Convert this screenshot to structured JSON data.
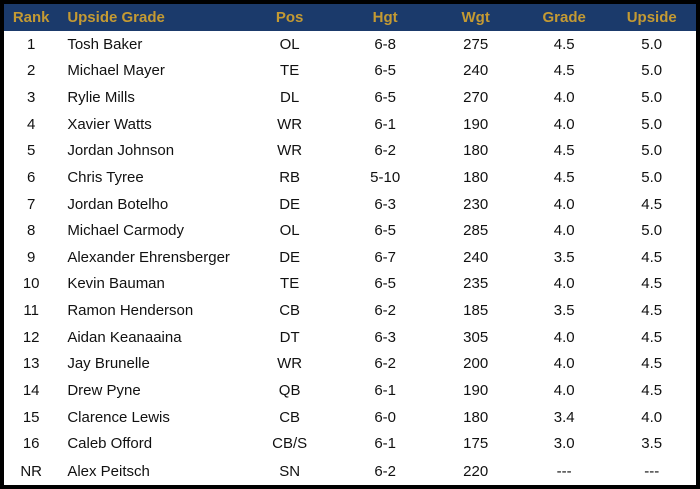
{
  "colors": {
    "header_bg": "#1B3A6B",
    "header_text": "#C49A33",
    "row_bg": "#FFFFFF",
    "row_text": "#111111",
    "outer_border": "#000000"
  },
  "chart_data": {
    "type": "table",
    "title": "",
    "columns": [
      "Rank",
      "Upside Grade",
      "Pos",
      "Hgt",
      "Wgt",
      "Grade",
      "Upside"
    ],
    "rows": [
      {
        "rank": "1",
        "name": "Tosh Baker",
        "pos": "OL",
        "hgt": "6-8",
        "wgt": "275",
        "grade": "4.5",
        "upside": "5.0"
      },
      {
        "rank": "2",
        "name": "Michael Mayer",
        "pos": "TE",
        "hgt": "6-5",
        "wgt": "240",
        "grade": "4.5",
        "upside": "5.0"
      },
      {
        "rank": "3",
        "name": "Rylie Mills",
        "pos": "DL",
        "hgt": "6-5",
        "wgt": "270",
        "grade": "4.0",
        "upside": "5.0"
      },
      {
        "rank": "4",
        "name": "Xavier Watts",
        "pos": "WR",
        "hgt": "6-1",
        "wgt": "190",
        "grade": "4.0",
        "upside": "5.0"
      },
      {
        "rank": "5",
        "name": "Jordan Johnson",
        "pos": "WR",
        "hgt": "6-2",
        "wgt": "180",
        "grade": "4.5",
        "upside": "5.0"
      },
      {
        "rank": "6",
        "name": "Chris Tyree",
        "pos": "RB",
        "hgt": "5-10",
        "wgt": "180",
        "grade": "4.5",
        "upside": "5.0"
      },
      {
        "rank": "7",
        "name": "Jordan Botelho",
        "pos": "DE",
        "hgt": "6-3",
        "wgt": "230",
        "grade": "4.0",
        "upside": "4.5"
      },
      {
        "rank": "8",
        "name": "Michael Carmody",
        "pos": "OL",
        "hgt": "6-5",
        "wgt": "285",
        "grade": "4.0",
        "upside": "5.0"
      },
      {
        "rank": "9",
        "name": "Alexander Ehrensberger",
        "pos": "DE",
        "hgt": "6-7",
        "wgt": "240",
        "grade": "3.5",
        "upside": "4.5"
      },
      {
        "rank": "10",
        "name": "Kevin Bauman",
        "pos": "TE",
        "hgt": "6-5",
        "wgt": "235",
        "grade": "4.0",
        "upside": "4.5"
      },
      {
        "rank": "11",
        "name": "Ramon Henderson",
        "pos": "CB",
        "hgt": "6-2",
        "wgt": "185",
        "grade": "3.5",
        "upside": "4.5"
      },
      {
        "rank": "12",
        "name": "Aidan Keanaaina",
        "pos": "DT",
        "hgt": "6-3",
        "wgt": "305",
        "grade": "4.0",
        "upside": "4.5"
      },
      {
        "rank": "13",
        "name": "Jay Brunelle",
        "pos": "WR",
        "hgt": "6-2",
        "wgt": "200",
        "grade": "4.0",
        "upside": "4.5"
      },
      {
        "rank": "14",
        "name": "Drew Pyne",
        "pos": "QB",
        "hgt": "6-1",
        "wgt": "190",
        "grade": "4.0",
        "upside": "4.5"
      },
      {
        "rank": "15",
        "name": "Clarence Lewis",
        "pos": "CB",
        "hgt": "6-0",
        "wgt": "180",
        "grade": "3.4",
        "upside": "4.0"
      },
      {
        "rank": "16",
        "name": "Caleb Offord",
        "pos": "CB/S",
        "hgt": "6-1",
        "wgt": "175",
        "grade": "3.0",
        "upside": "3.5"
      },
      {
        "rank": "NR",
        "name": "Alex Peitsch",
        "pos": "SN",
        "hgt": "6-2",
        "wgt": "220",
        "grade": "---",
        "upside": "---"
      }
    ]
  }
}
